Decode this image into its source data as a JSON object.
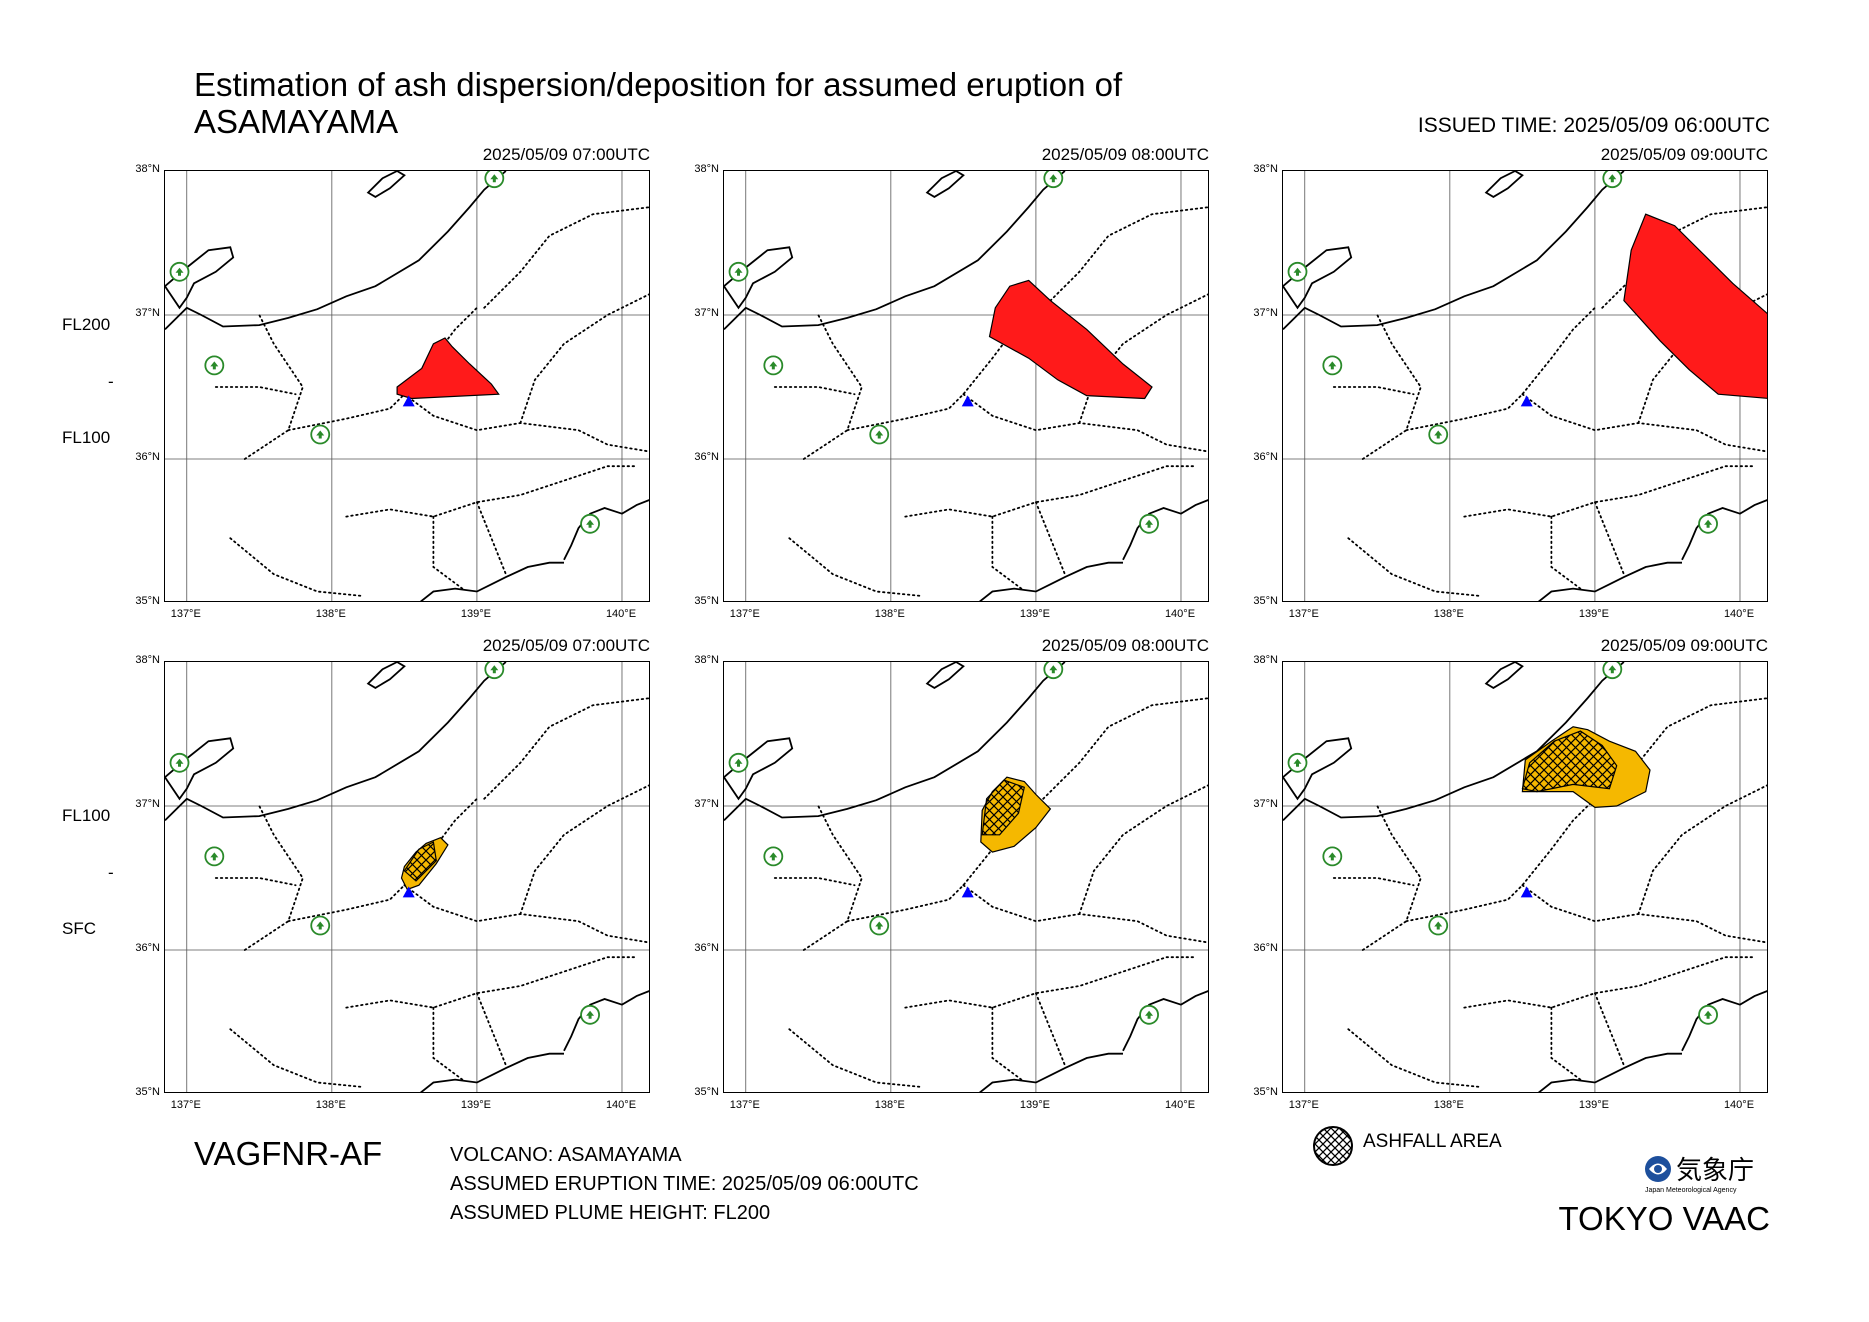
{
  "title": [
    "Estimation of ash dispersion/deposition for assumed eruption of",
    "ASAMAYAMA"
  ],
  "issued_time": "ISSUED TIME: 2025/05/09 06:00UTC",
  "lat_labels": [
    "38°N",
    "37°N",
    "36°N",
    "35°N"
  ],
  "lon_labels": [
    "137°E",
    "138°E",
    "139°E",
    "140°E"
  ],
  "rows": [
    {
      "levels": [
        "FL200",
        "-",
        "FL100"
      ],
      "layer": "FL100-FL200",
      "color": "#ff1a1a"
    },
    {
      "levels": [
        "FL100",
        "-",
        "SFC"
      ],
      "layer": "SFC-FL100",
      "color": "#f5b800"
    }
  ],
  "panels": [
    {
      "time": "2025/05/09 07:00UTC",
      "row": 0
    },
    {
      "time": "2025/05/09 08:00UTC",
      "row": 0
    },
    {
      "time": "2025/05/09 09:00UTC",
      "row": 0
    },
    {
      "time": "2025/05/09 07:00UTC",
      "row": 1
    },
    {
      "time": "2025/05/09 08:00UTC",
      "row": 1
    },
    {
      "time": "2025/05/09 09:00UTC",
      "row": 1
    }
  ],
  "product_code": "VAGFNR-AF",
  "info": {
    "volcano": "VOLCANO: ASAMAYAMA",
    "eruption_time": "ASSUMED ERUPTION TIME: 2025/05/09 06:00UTC",
    "plume_height": "ASSUMED PLUME HEIGHT: FL200"
  },
  "legend": {
    "label": "ASHFALL AREA",
    "icon": "crosshatch-circle-icon"
  },
  "agency": {
    "name_ja": "気象庁",
    "name_en": "Japan Meteorological Agency",
    "icon": "jma-logo-icon"
  },
  "vaac": "TOKYO VAAC",
  "map": {
    "volcano": {
      "name": "ASAMAYAMA",
      "lat": 36.4,
      "lon": 138.53,
      "marker": "blue-triangle-icon",
      "color": "#0000ff"
    },
    "airports": [
      {
        "lat": 37.95,
        "lon": 139.12
      },
      {
        "lat": 37.3,
        "lon": 136.95
      },
      {
        "lat": 36.65,
        "lon": 137.19
      },
      {
        "lat": 36.17,
        "lon": 137.92
      },
      {
        "lat": 35.55,
        "lon": 139.78
      }
    ],
    "airport_color": "#2a8a2a"
  }
}
